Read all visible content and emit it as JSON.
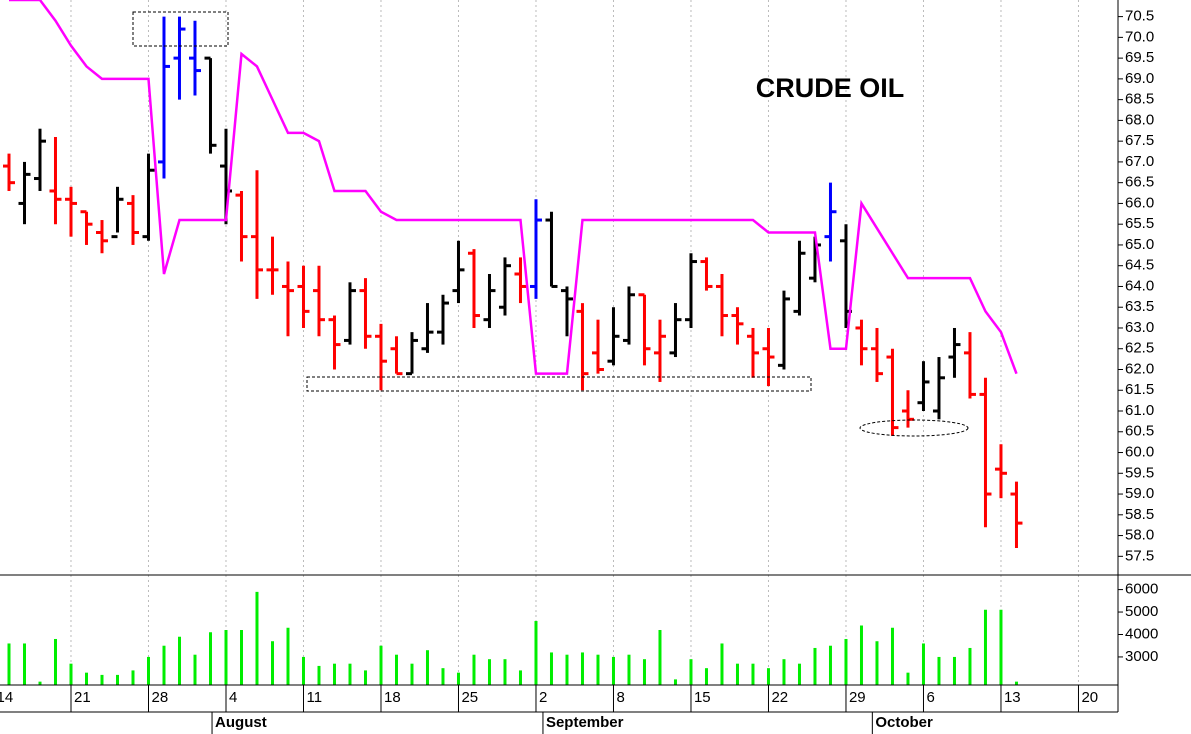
{
  "chart_data": {
    "type": "ohlc",
    "title": "CRUDE OIL",
    "x": [
      0,
      1,
      2,
      3,
      4,
      5,
      6,
      7,
      8,
      9,
      10,
      11,
      12,
      13,
      14,
      15,
      16,
      17,
      18,
      19,
      20,
      21,
      22,
      23,
      24,
      25,
      26,
      27,
      28,
      29,
      30,
      31,
      32,
      33,
      34,
      35,
      36,
      37,
      38,
      39,
      40,
      41,
      42,
      43,
      44,
      45,
      46,
      47,
      48,
      49,
      50,
      51,
      52,
      53,
      54,
      55,
      56,
      57,
      58,
      59,
      60,
      61,
      62,
      63,
      64,
      65
    ],
    "open": [
      66.9,
      66.0,
      66.6,
      66.3,
      66.1,
      65.8,
      65.3,
      65.2,
      66.0,
      65.2,
      67.0,
      69.5,
      69.5,
      69.5,
      66.9,
      66.2,
      65.2,
      64.4,
      64.0,
      64.0,
      63.9,
      63.2,
      62.7,
      63.9,
      62.8,
      62.5,
      61.9,
      62.5,
      62.9,
      63.9,
      64.8,
      63.2,
      63.5,
      64.3,
      64.0,
      65.6,
      63.9,
      63.4,
      62.4,
      62.2,
      62.7,
      63.8,
      62.4,
      62.4,
      63.2,
      64.6,
      64.0,
      63.3,
      62.8,
      62.5,
      62.1,
      63.4,
      64.2,
      65.2,
      65.1,
      63.0,
      62.5,
      62.3,
      61.0,
      61.2,
      61.0,
      62.3,
      62.4,
      61.4,
      59.6,
      59.0
    ],
    "high": [
      67.2,
      67.0,
      67.8,
      67.6,
      66.4,
      65.8,
      65.6,
      66.4,
      66.2,
      67.2,
      70.5,
      70.5,
      70.4,
      69.5,
      67.8,
      66.3,
      66.8,
      65.2,
      64.6,
      64.5,
      64.5,
      63.3,
      64.1,
      64.2,
      63.1,
      62.8,
      62.9,
      63.6,
      63.8,
      65.1,
      64.9,
      64.3,
      64.7,
      64.7,
      66.1,
      65.8,
      64.0,
      63.6,
      63.2,
      63.5,
      64.0,
      63.8,
      63.2,
      63.6,
      64.8,
      64.7,
      64.3,
      63.5,
      63.0,
      63.0,
      63.9,
      65.1,
      65.2,
      66.5,
      65.5,
      63.2,
      63.0,
      62.5,
      61.5,
      62.2,
      62.3,
      63.0,
      62.9,
      61.8,
      60.2,
      59.3
    ],
    "low": [
      66.3,
      65.5,
      66.3,
      65.5,
      65.2,
      65.0,
      64.8,
      65.3,
      65.0,
      65.1,
      66.6,
      68.5,
      68.6,
      67.2,
      65.5,
      64.6,
      63.7,
      63.8,
      62.8,
      63.0,
      62.8,
      62.0,
      62.6,
      62.5,
      61.5,
      61.9,
      61.9,
      62.4,
      62.6,
      63.6,
      63.0,
      63.0,
      63.3,
      63.6,
      63.7,
      64.0,
      62.8,
      61.5,
      61.9,
      62.1,
      62.6,
      62.1,
      61.7,
      62.3,
      63.0,
      63.9,
      62.8,
      62.6,
      61.8,
      61.6,
      62.0,
      63.3,
      64.1,
      64.6,
      63.0,
      62.1,
      61.7,
      60.4,
      60.6,
      61.0,
      60.8,
      61.8,
      61.3,
      58.2,
      58.9,
      57.7
    ],
    "close": [
      66.5,
      66.7,
      67.5,
      66.1,
      66.0,
      65.5,
      65.1,
      66.1,
      65.3,
      66.8,
      69.3,
      70.2,
      69.2,
      67.4,
      66.3,
      65.2,
      64.4,
      64.4,
      63.9,
      63.4,
      63.2,
      62.6,
      63.9,
      62.8,
      62.2,
      61.9,
      62.7,
      62.9,
      63.6,
      64.4,
      63.3,
      63.9,
      64.5,
      64.0,
      65.6,
      64.0,
      63.7,
      61.9,
      62.0,
      62.8,
      63.8,
      62.5,
      62.8,
      63.2,
      64.6,
      64.0,
      63.3,
      63.1,
      62.4,
      62.3,
      63.7,
      64.8,
      65.0,
      65.8,
      63.4,
      62.5,
      61.9,
      60.6,
      60.8,
      61.7,
      61.8,
      62.6,
      61.4,
      59.0,
      59.5,
      58.3
    ],
    "bar_colors": [
      "#ff0000",
      "#000000",
      "#000000",
      "#ff0000",
      "#ff0000",
      "#ff0000",
      "#ff0000",
      "#000000",
      "#ff0000",
      "#000000",
      "#0000ff",
      "#0000ff",
      "#0000ff",
      "#000000",
      "#000000",
      "#ff0000",
      "#ff0000",
      "#ff0000",
      "#ff0000",
      "#ff0000",
      "#ff0000",
      "#ff0000",
      "#000000",
      "#ff0000",
      "#ff0000",
      "#ff0000",
      "#000000",
      "#000000",
      "#000000",
      "#000000",
      "#ff0000",
      "#000000",
      "#000000",
      "#ff0000",
      "#0000ff",
      "#000000",
      "#000000",
      "#ff0000",
      "#ff0000",
      "#000000",
      "#000000",
      "#ff0000",
      "#ff0000",
      "#000000",
      "#000000",
      "#ff0000",
      "#ff0000",
      "#ff0000",
      "#ff0000",
      "#ff0000",
      "#000000",
      "#000000",
      "#000000",
      "#0000ff",
      "#000000",
      "#ff0000",
      "#ff0000",
      "#ff0000",
      "#ff0000",
      "#000000",
      "#000000",
      "#000000",
      "#ff0000",
      "#ff0000",
      "#ff0000",
      "#ff0000"
    ],
    "line": {
      "color": "#ff00ff",
      "values": [
        70.9,
        70.9,
        70.9,
        70.4,
        69.8,
        69.3,
        69.0,
        69.0,
        69.0,
        69.0,
        64.3,
        65.6,
        65.6,
        65.6,
        65.6,
        69.6,
        69.3,
        68.5,
        67.7,
        67.7,
        67.5,
        66.3,
        66.3,
        66.3,
        65.8,
        65.6,
        65.6,
        65.6,
        65.6,
        65.6,
        65.6,
        65.6,
        65.6,
        65.6,
        61.9,
        61.9,
        61.9,
        65.6,
        65.6,
        65.6,
        65.6,
        65.6,
        65.6,
        65.6,
        65.6,
        65.6,
        65.6,
        65.6,
        65.6,
        65.3,
        65.3,
        65.3,
        65.3,
        62.5,
        62.5,
        66.0,
        65.4,
        64.8,
        64.2,
        64.2,
        64.2,
        64.2,
        64.2,
        63.4,
        62.9,
        61.9
      ]
    },
    "volume": {
      "color": "#00ee00",
      "values": [
        3600,
        3600,
        1900,
        3800,
        2700,
        2300,
        2200,
        2200,
        2400,
        3000,
        3500,
        3900,
        3100,
        4100,
        4200,
        4200,
        5900,
        3700,
        4300,
        3000,
        2600,
        2700,
        2700,
        2400,
        3500,
        3100,
        2700,
        3300,
        2500,
        2300,
        3100,
        2900,
        2900,
        2400,
        4600,
        3200,
        3100,
        3200,
        3100,
        3000,
        3100,
        2900,
        4200,
        2000,
        2900,
        2500,
        3600,
        2700,
        2700,
        2500,
        2900,
        2700,
        3400,
        3500,
        3800,
        4400,
        3700,
        4300,
        2300,
        3600,
        3000,
        3000,
        3400,
        5100,
        5100,
        1900
      ],
      "ylim": [
        1750,
        6650
      ],
      "yticks": [
        3000,
        4000,
        5000,
        6000
      ]
    },
    "xlim": [
      -0.58,
      71.55
    ],
    "xticks": [
      {
        "value": -1,
        "label": "14"
      },
      {
        "value": 4,
        "label": "21"
      },
      {
        "value": 9,
        "label": "28"
      },
      {
        "value": 14,
        "label": "4"
      },
      {
        "value": 19,
        "label": "11"
      },
      {
        "value": 24,
        "label": "18"
      },
      {
        "value": 29,
        "label": "25"
      },
      {
        "value": 34,
        "label": "2"
      },
      {
        "value": 39,
        "label": "8"
      },
      {
        "value": 44,
        "label": "15"
      },
      {
        "value": 49,
        "label": "22"
      },
      {
        "value": 54,
        "label": "29"
      },
      {
        "value": 59,
        "label": "6"
      },
      {
        "value": 64,
        "label": "13"
      },
      {
        "value": 69,
        "label": "20"
      }
    ],
    "months": [
      {
        "value": 13.1,
        "label": "August"
      },
      {
        "value": 34.45,
        "label": "September"
      },
      {
        "value": 55.7,
        "label": "October"
      }
    ],
    "ylim": [
      57.05,
      70.9
    ],
    "yticks": [
      57.5,
      {
        "value": 58,
        "label": "58.0"
      },
      58.5,
      {
        "value": 59,
        "label": "59.0"
      },
      59.5,
      {
        "value": 60,
        "label": "60.0"
      },
      60.5,
      {
        "value": 61,
        "label": "61.0"
      },
      61.5,
      {
        "value": 62,
        "label": "62.0"
      },
      62.5,
      {
        "value": 63,
        "label": "63.0"
      },
      63.5,
      {
        "value": 64,
        "label": "64.0"
      },
      64.5,
      {
        "value": 65,
        "label": "65.0"
      },
      65.5,
      {
        "value": 66,
        "label": "66.0"
      },
      66.5,
      {
        "value": 67,
        "label": "67.0"
      },
      67.5,
      {
        "value": 68,
        "label": "68.0"
      },
      68.5,
      {
        "value": 69,
        "label": "69.0"
      },
      69.5,
      {
        "value": 70,
        "label": "70.0"
      },
      70.5
    ],
    "grid": true
  }
}
